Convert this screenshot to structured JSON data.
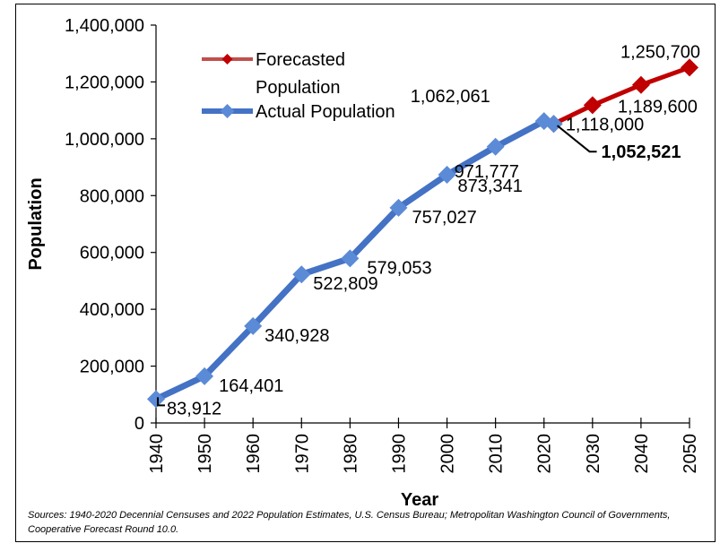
{
  "chart_data": {
    "type": "line",
    "xlabel": "Year",
    "ylabel": "Population",
    "ylim": [
      0,
      1400000
    ],
    "xlim": [
      1940,
      2050
    ],
    "y_ticks": [
      "0",
      "200,000",
      "400,000",
      "600,000",
      "800,000",
      "1,000,000",
      "1,200,000",
      "1,400,000"
    ],
    "x_ticks": [
      "1940",
      "1950",
      "1960",
      "1970",
      "1980",
      "1990",
      "2000",
      "2010",
      "2020",
      "2030",
      "2040",
      "2050"
    ],
    "legend": {
      "placement": "top-left"
    },
    "series": [
      {
        "name": "Forecasted Population",
        "color": "#C00000",
        "marker": "diamond",
        "x": [
          2022,
          2030,
          2040,
          2050
        ],
        "values": [
          1052521,
          1118000,
          1189600,
          1250700
        ],
        "labels": [
          "1,052,521",
          "1,118,000",
          "1,189,600",
          "1,250,700"
        ]
      },
      {
        "name": "Actual Population",
        "color": "#4472C4",
        "marker": "diamond",
        "x": [
          1940,
          1950,
          1960,
          1970,
          1980,
          1990,
          2000,
          2010,
          2020,
          2022
        ],
        "values": [
          83912,
          164401,
          340928,
          522809,
          579053,
          757027,
          873341,
          971777,
          1062061,
          1052521
        ],
        "labels": [
          "83,912",
          "164,401",
          "340,928",
          "522,809",
          "579,053",
          "757,027",
          "873,341",
          "971,777",
          "1,062,061",
          ""
        ]
      }
    ]
  },
  "legend_entries": [
    "Forecasted",
    "Population",
    "Actual Population"
  ],
  "source_note": "Sources: 1940-2020 Decennial Censuses and 2022 Population Estimates, U.S. Census Bureau; Metropolitan Washington Council of Governments, Cooperative Forecast Round 10.0."
}
